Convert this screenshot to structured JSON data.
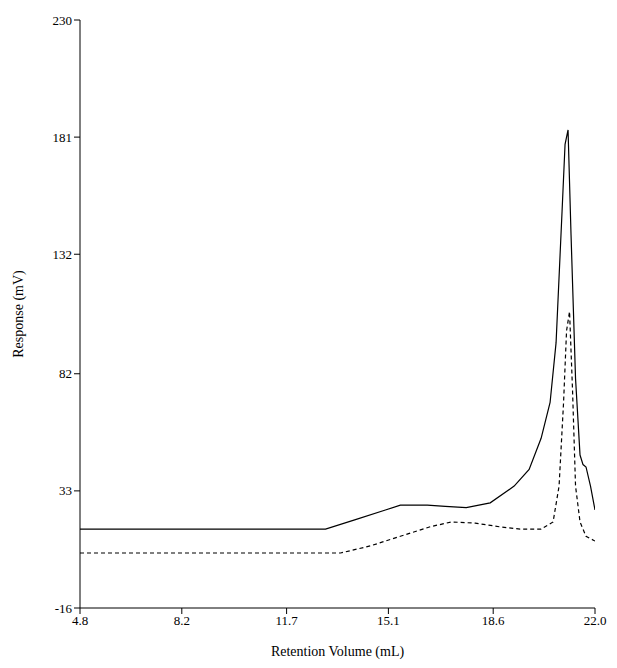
{
  "chart_data": {
    "type": "line",
    "x_label": "Retention Volume (mL)",
    "y_label": "Response (mV)",
    "xlim": [
      4.8,
      22.0
    ],
    "xticks": [
      4.8,
      8.2,
      11.7,
      15.1,
      18.6,
      {
        "value": 22.0,
        "label": "22.0"
      }
    ],
    "ylim": [
      -16,
      230
    ],
    "yticks": [
      -16,
      33,
      82,
      132,
      181,
      230
    ],
    "series": [
      {
        "color": "#000000",
        "line_style": "solid",
        "x": [
          4.8,
          6,
          8,
          10,
          12,
          13,
          14,
          15,
          15.5,
          16.4,
          17,
          17.7,
          18.5,
          19.3,
          19.8,
          20.2,
          20.5,
          20.7,
          20.9,
          21.0,
          21.1,
          21.2,
          21.35,
          21.5,
          21.6,
          21.7,
          21.85,
          22
        ],
        "values": [
          17,
          17,
          17,
          17,
          17,
          17,
          21,
          25,
          27,
          27,
          26.5,
          26,
          28,
          35,
          42,
          55,
          70,
          95,
          150,
          178,
          184,
          140,
          80,
          48,
          44,
          43,
          35,
          25
        ]
      },
      {
        "color": "#000000",
        "line_style": "dashed",
        "x": [
          4.8,
          8,
          12,
          13.5,
          14.5,
          15.5,
          16.5,
          17.2,
          18,
          18.8,
          19.5,
          20.2,
          20.6,
          20.8,
          20.95,
          21.05,
          21.15,
          21.25,
          21.35,
          21.5,
          21.7,
          22
        ],
        "values": [
          7,
          7,
          7,
          7,
          10,
          14,
          18,
          20,
          19.5,
          18,
          17,
          17,
          20,
          35,
          70,
          100,
          108,
          75,
          35,
          20,
          14,
          12
        ]
      }
    ]
  }
}
